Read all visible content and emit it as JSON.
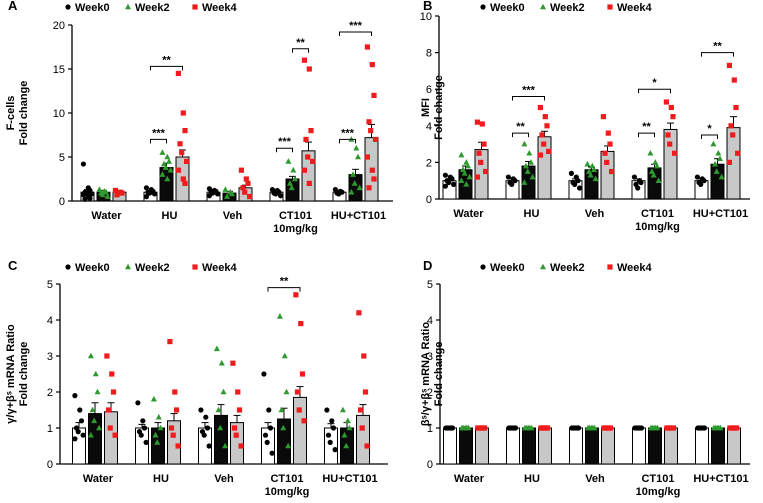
{
  "colors": {
    "week0": "#000000",
    "week2": "#2e9a2e",
    "week4": "#ee1c1c",
    "bar0": "#ffffff",
    "bar2": "#0a0a0a",
    "bar4": "#c8c8c8"
  },
  "chart_data": [
    {
      "panel": "A",
      "type": "bar",
      "ylabel_lines": [
        "F-cells",
        "Fold change"
      ],
      "yticks": [
        "0",
        "5",
        "10",
        "15",
        "20"
      ],
      "ylim": [
        0,
        20
      ],
      "categories": [
        {
          "lines": [
            "Water"
          ]
        },
        {
          "lines": [
            "HU"
          ]
        },
        {
          "lines": [
            "Veh"
          ]
        },
        {
          "lines": [
            "CT101",
            "10mg/kg"
          ]
        },
        {
          "lines": [
            "HU+CT101"
          ]
        }
      ],
      "legend": [
        "Week0",
        "Week2",
        "Week4"
      ],
      "series": [
        {
          "name": "Week0",
          "values": [
            1.0,
            1.0,
            1.0,
            1.0,
            1.0
          ],
          "err": [
            0.3,
            0.15,
            0.2,
            0.2,
            0.15
          ],
          "points": [
            [
              4.2,
              1.5,
              1.2,
              1.0,
              0.9,
              0.8,
              0.7,
              0.5,
              0.3,
              0.2
            ],
            [
              1.5,
              1.3,
              1.1,
              1.0,
              0.9,
              0.8,
              0.5
            ],
            [
              1.4,
              1.2,
              1.1,
              1.0,
              0.9,
              0.8,
              0.6
            ],
            [
              1.3,
              1.2,
              1.0,
              0.9,
              0.8,
              0.6
            ],
            [
              1.3,
              1.1,
              1.0,
              0.9,
              0.8
            ]
          ]
        },
        {
          "name": "Week2",
          "values": [
            1.0,
            3.8,
            0.9,
            2.5,
            3.0
          ],
          "err": [
            0.2,
            0.5,
            0.2,
            0.3,
            0.6
          ],
          "points": [
            [
              1.3,
              1.1,
              1.0,
              0.9,
              0.7,
              0.5
            ],
            [
              5.5,
              5.0,
              4.5,
              4.2,
              3.8,
              3.5,
              3.0,
              2.5
            ],
            [
              1.3,
              1.0,
              0.8,
              0.5
            ],
            [
              4.5,
              3.5,
              2.5,
              2.0,
              1.5
            ],
            [
              7.0,
              6.0,
              5.0,
              3.0,
              2.0,
              1.5,
              1.0
            ]
          ]
        },
        {
          "name": "Week4",
          "values": [
            1.0,
            5.0,
            1.5,
            5.7,
            7.2
          ],
          "err": [
            0.2,
            0.8,
            0.3,
            1.0,
            1.5
          ],
          "points": [
            [
              1.2,
              1.0,
              0.9,
              0.7
            ],
            [
              14.5,
              10.0,
              8.0,
              6.5,
              5.5,
              4.5,
              3.5,
              2.5,
              2.0
            ],
            [
              3.5,
              2.5,
              2.0,
              1.5,
              1.0,
              0.5
            ],
            [
              16.0,
              15.0,
              8.0,
              7.0,
              5.0,
              4.5,
              3.5,
              2.0
            ],
            [
              17.5,
              15.5,
              12.0,
              9.0,
              8.0,
              7.0,
              5.0,
              3.5,
              2.5,
              1.5
            ]
          ]
        }
      ],
      "significance": [
        {
          "cat": 1,
          "from": 0,
          "to": 2,
          "y": 15.3,
          "label": "**"
        },
        {
          "cat": 1,
          "from": 0,
          "to": 1,
          "y": 7.0,
          "label": "***"
        },
        {
          "cat": 3,
          "from": 1,
          "to": 2,
          "y": 17.3,
          "label": "**"
        },
        {
          "cat": 3,
          "from": 0,
          "to": 1,
          "y": 6.0,
          "label": "***"
        },
        {
          "cat": 4,
          "from": 0,
          "to": 2,
          "y": 19.2,
          "label": "***"
        },
        {
          "cat": 4,
          "from": 0,
          "to": 1,
          "y": 7.0,
          "label": "***"
        }
      ]
    },
    {
      "panel": "B",
      "type": "bar",
      "ylabel_lines": [
        "MFI",
        "Fold change"
      ],
      "yticks": [
        "0",
        "2",
        "4",
        "6",
        "8",
        "10"
      ],
      "ylim": [
        0,
        10
      ],
      "categories": [
        {
          "lines": [
            "Water"
          ]
        },
        {
          "lines": [
            "HU"
          ]
        },
        {
          "lines": [
            "Veh"
          ]
        },
        {
          "lines": [
            "CT101",
            "10mg/kg"
          ]
        },
        {
          "lines": [
            "HU+CT101"
          ]
        }
      ],
      "legend": [
        "Week0",
        "Week2",
        "Week4"
      ],
      "series": [
        {
          "name": "Week0",
          "values": [
            1.0,
            1.0,
            1.0,
            1.0,
            1.0
          ],
          "err": [
            0.1,
            0.1,
            0.1,
            0.1,
            0.1
          ],
          "points": [
            [
              1.3,
              1.2,
              1.1,
              1.0,
              0.9,
              0.8,
              0.7
            ],
            [
              1.2,
              1.1,
              1.0,
              0.9,
              0.8
            ],
            [
              1.4,
              1.2,
              1.0,
              0.9,
              0.8,
              0.6
            ],
            [
              1.2,
              1.0,
              0.9,
              0.8,
              0.6
            ],
            [
              1.2,
              1.1,
              1.0,
              0.9,
              0.8
            ]
          ]
        },
        {
          "name": "Week2",
          "values": [
            1.6,
            1.8,
            1.6,
            1.7,
            1.9
          ],
          "err": [
            0.2,
            0.25,
            0.15,
            0.2,
            0.3
          ],
          "points": [
            [
              2.4,
              2.0,
              1.8,
              1.6,
              1.4,
              1.2,
              1.0,
              0.8
            ],
            [
              3.0,
              2.5,
              2.0,
              1.8,
              1.5,
              1.2,
              0.9
            ],
            [
              1.9,
              1.8,
              1.6,
              1.5,
              1.3,
              1.1
            ],
            [
              2.5,
              2.0,
              1.8,
              1.5,
              1.3,
              1.0
            ],
            [
              3.0,
              2.5,
              2.2,
              1.9,
              1.5,
              1.2
            ]
          ]
        },
        {
          "name": "Week4",
          "values": [
            2.7,
            3.4,
            2.6,
            3.8,
            3.9
          ],
          "err": [
            0.4,
            0.3,
            0.3,
            0.35,
            0.6
          ],
          "points": [
            [
              4.2,
              4.1,
              3.0,
              2.5,
              2.0,
              1.5,
              1.2
            ],
            [
              5.0,
              4.5,
              4.0,
              3.5,
              3.0,
              2.6,
              2.4
            ],
            [
              4.5,
              3.6,
              3.0,
              2.5,
              2.0,
              1.5
            ],
            [
              5.3,
              5.0,
              4.5,
              3.5,
              3.0,
              2.5
            ],
            [
              7.3,
              6.5,
              5.0,
              4.0,
              3.5,
              2.5,
              2.0
            ]
          ]
        }
      ],
      "significance": [
        {
          "cat": 1,
          "from": 0,
          "to": 2,
          "y": 5.6,
          "label": "***"
        },
        {
          "cat": 1,
          "from": 0,
          "to": 1,
          "y": 3.6,
          "label": "**"
        },
        {
          "cat": 3,
          "from": 0,
          "to": 2,
          "y": 6.0,
          "label": "*"
        },
        {
          "cat": 3,
          "from": 0,
          "to": 1,
          "y": 3.6,
          "label": "**"
        },
        {
          "cat": 4,
          "from": 0,
          "to": 2,
          "y": 8.0,
          "label": "**"
        },
        {
          "cat": 4,
          "from": 0,
          "to": 1,
          "y": 3.5,
          "label": "*"
        }
      ]
    },
    {
      "panel": "C",
      "type": "bar",
      "ylabel_lines": [
        "γ/γ+βˢ mRNA Ratio",
        "Fold change"
      ],
      "yticks": [
        "0",
        "1",
        "2",
        "3",
        "4",
        "5"
      ],
      "ylim": [
        0,
        5
      ],
      "categories": [
        {
          "lines": [
            "Water"
          ]
        },
        {
          "lines": [
            "HU"
          ]
        },
        {
          "lines": [
            "Veh"
          ]
        },
        {
          "lines": [
            "CT101",
            "10mg/kg"
          ]
        },
        {
          "lines": [
            "HU+CT101"
          ]
        }
      ],
      "legend": [
        "Week0",
        "Week2",
        "Week4"
      ],
      "series": [
        {
          "name": "Week0",
          "values": [
            1.0,
            1.0,
            1.0,
            1.0,
            1.0
          ],
          "err": [
            0.15,
            0.1,
            0.15,
            0.15,
            0.12
          ],
          "points": [
            [
              1.9,
              1.5,
              1.2,
              1.0,
              0.9,
              0.8,
              0.7
            ],
            [
              1.7,
              1.2,
              1.0,
              0.9,
              0.8,
              0.6
            ],
            [
              1.5,
              1.3,
              1.0,
              0.9,
              0.8,
              0.5
            ],
            [
              2.5,
              1.5,
              1.0,
              0.8,
              0.6,
              0.3
            ],
            [
              1.5,
              1.2,
              1.0,
              0.8,
              0.6,
              0.4
            ]
          ]
        },
        {
          "name": "Week2",
          "values": [
            1.4,
            1.0,
            1.35,
            1.25,
            1.0
          ],
          "err": [
            0.3,
            0.15,
            0.3,
            0.3,
            0.15
          ],
          "points": [
            [
              3.0,
              2.5,
              2.0,
              1.5,
              1.2,
              1.0,
              0.8
            ],
            [
              1.8,
              1.3,
              1.0,
              0.8,
              0.6
            ],
            [
              3.2,
              2.8,
              2.0,
              1.5,
              1.0,
              0.5
            ],
            [
              4.1,
              3.0,
              2.0,
              1.5,
              1.0,
              0.5
            ],
            [
              1.5,
              1.2,
              1.0,
              0.8,
              0.5
            ]
          ]
        },
        {
          "name": "Week4",
          "values": [
            1.45,
            1.2,
            1.15,
            1.85,
            1.35
          ],
          "err": [
            0.25,
            0.2,
            0.2,
            0.3,
            0.3
          ],
          "points": [
            [
              3.0,
              2.5,
              2.0,
              1.5,
              1.0,
              0.8
            ],
            [
              3.4,
              2.0,
              1.5,
              1.0,
              0.8,
              0.5
            ],
            [
              2.8,
              2.0,
              1.5,
              1.0,
              0.8,
              0.5
            ],
            [
              4.7,
              3.9,
              2.5,
              2.0,
              1.5,
              1.2
            ],
            [
              4.2,
              3.0,
              2.0,
              1.5,
              1.0,
              0.5
            ]
          ]
        }
      ],
      "significance": [
        {
          "cat": 3,
          "from": 0,
          "to": 2,
          "y": 4.9,
          "label": "**"
        }
      ]
    },
    {
      "panel": "D",
      "type": "bar",
      "ylabel_lines": [
        "βˢ/γ+βˢ mRNA Ratio",
        "Fold change"
      ],
      "yticks": [
        "0",
        "1",
        "2",
        "3",
        "4",
        "5"
      ],
      "ylim": [
        0,
        5
      ],
      "categories": [
        {
          "lines": [
            "Water"
          ]
        },
        {
          "lines": [
            "HU"
          ]
        },
        {
          "lines": [
            "Veh"
          ]
        },
        {
          "lines": [
            "CT101",
            "10mg/kg"
          ]
        },
        {
          "lines": [
            "HU+CT101"
          ]
        }
      ],
      "legend": [
        "Week0",
        "Week2",
        "Week4"
      ],
      "series": [
        {
          "name": "Week0",
          "values": [
            1.0,
            1.0,
            1.0,
            1.0,
            1.0
          ],
          "err": [
            0,
            0,
            0,
            0,
            0
          ],
          "points": [
            [
              1.0,
              1.0,
              1.0,
              1.0,
              1.0
            ],
            [
              1.0,
              1.0,
              1.0,
              1.0,
              1.0
            ],
            [
              1.0,
              1.0,
              1.0,
              1.0,
              1.0
            ],
            [
              1.0,
              1.0,
              1.0,
              1.0,
              1.0
            ],
            [
              1.0,
              1.0,
              1.0,
              1.0,
              1.0
            ]
          ]
        },
        {
          "name": "Week2",
          "values": [
            1.0,
            1.0,
            1.0,
            1.0,
            1.0
          ],
          "err": [
            0,
            0,
            0,
            0,
            0
          ],
          "points": [
            [
              1.0,
              1.0,
              1.0,
              1.0,
              1.0
            ],
            [
              1.0,
              1.0,
              1.0,
              1.0,
              1.0
            ],
            [
              1.0,
              1.0,
              1.0,
              1.0,
              1.0
            ],
            [
              1.0,
              1.0,
              1.0,
              1.0,
              1.0
            ],
            [
              1.0,
              1.0,
              1.0,
              1.0,
              1.0
            ]
          ]
        },
        {
          "name": "Week4",
          "values": [
            1.0,
            1.0,
            1.0,
            1.0,
            1.0
          ],
          "err": [
            0,
            0,
            0,
            0,
            0
          ],
          "points": [
            [
              1.0,
              1.0,
              1.0,
              1.0,
              1.0
            ],
            [
              1.0,
              1.0,
              1.0,
              1.0,
              1.0
            ],
            [
              1.0,
              1.0,
              1.0,
              1.0,
              1.0
            ],
            [
              1.0,
              1.0,
              1.0,
              1.0,
              1.0
            ],
            [
              1.0,
              1.0,
              1.0,
              1.0,
              1.0
            ]
          ]
        }
      ],
      "significance": []
    }
  ]
}
